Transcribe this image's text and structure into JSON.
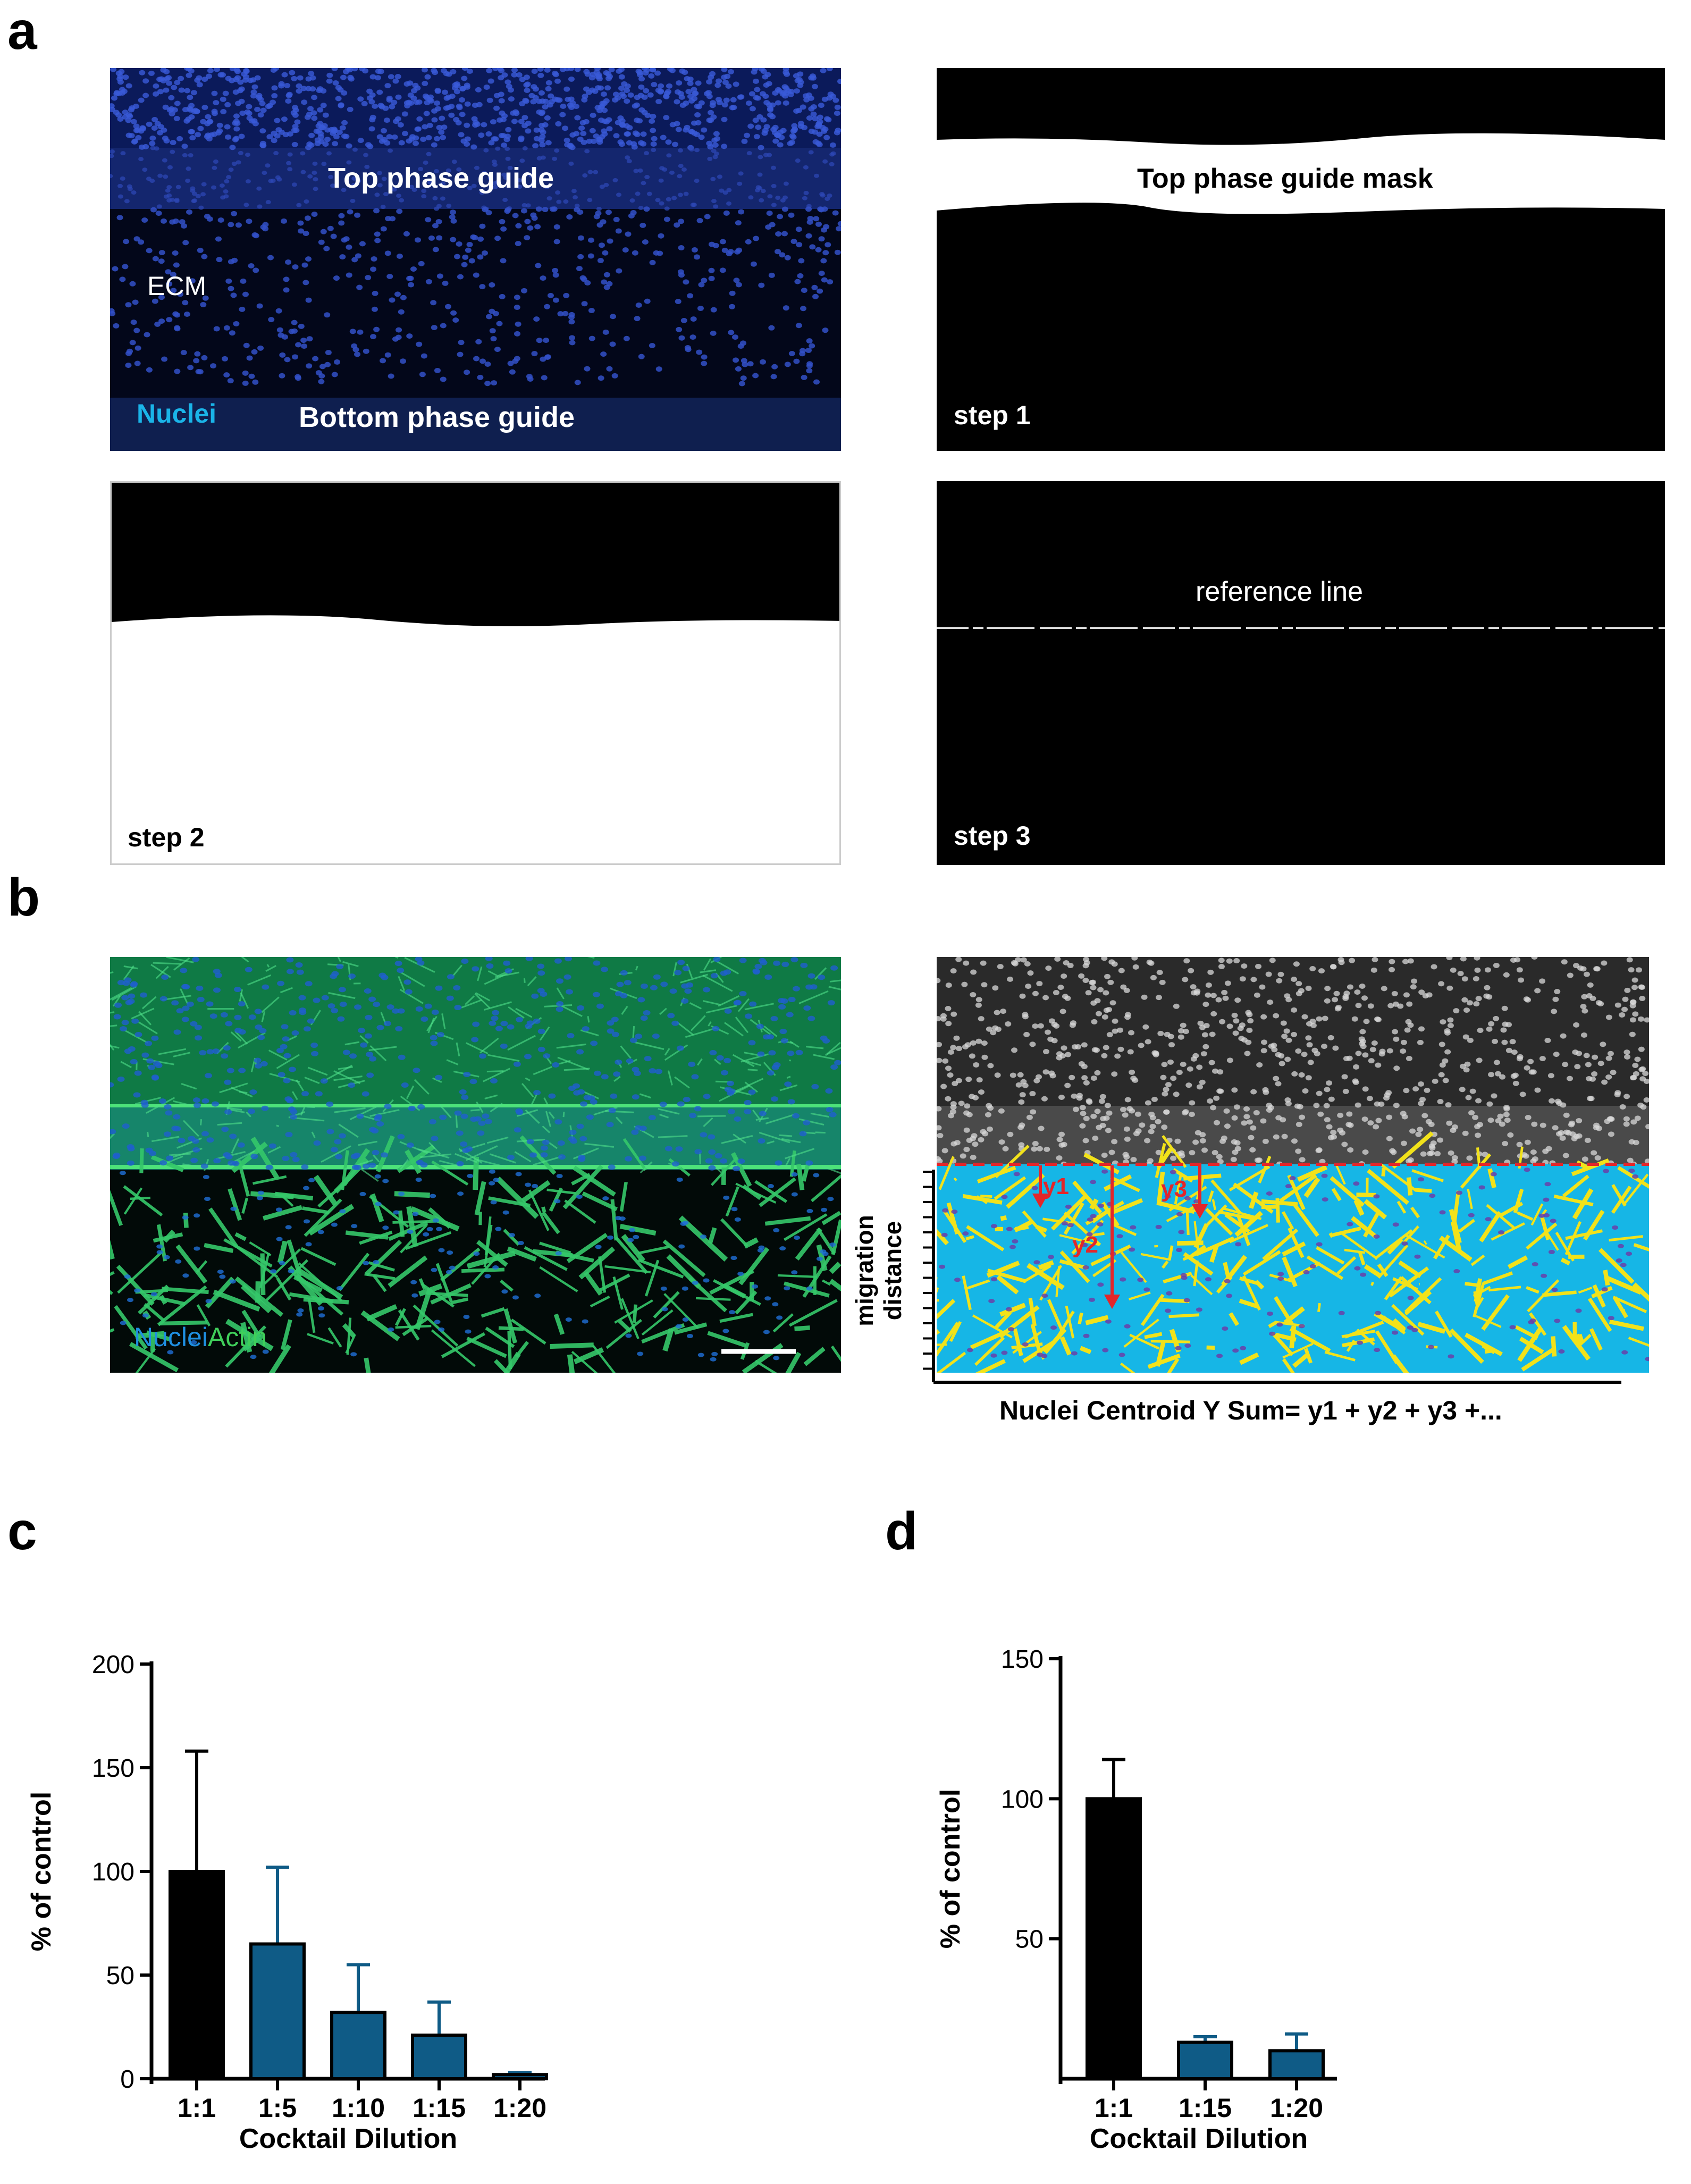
{
  "panel_labels": {
    "a": "a",
    "b": "b",
    "c": "c",
    "d": "d"
  },
  "panel_a": {
    "image1": {
      "top_label": "Top phase guide",
      "ecm_label": "ECM",
      "nuclei_label": "Nuclei",
      "bottom_label": "Bottom phase guide"
    },
    "image2": {
      "mask_label": "Top phase guide mask",
      "step_label": "step 1"
    },
    "image3": {
      "step_label": "step 2"
    },
    "image4": {
      "ref_label": "reference line",
      "step_label": "step 3"
    },
    "colors": {
      "nuclei_blue": "#1a2f8a",
      "label_cyan": "#1ab4e8",
      "mask_black": "#000000"
    }
  },
  "panel_b": {
    "left": {
      "label_nuclei": "Nuclei",
      "label_actin": "Actin",
      "colors": {
        "actin_green": "#2ecc5a",
        "nuclei_blue": "#1f5fd0"
      }
    },
    "right": {
      "y1": "y1",
      "y2": "y2",
      "y3": "y3",
      "axis_label_line1": "migration",
      "axis_label_line2": "distance",
      "formula": "Nuclei Centroid Y Sum= y1 + y2 + y3 +...",
      "colors": {
        "background_cyan": "#16b6e6",
        "cells_yellow": "#f2e21a",
        "arrow_red": "#e3262a"
      }
    }
  },
  "chart_data": [
    {
      "type": "bar",
      "panel": "c",
      "categories": [
        "1:1",
        "1:5",
        "1:10",
        "1:15",
        "1:20"
      ],
      "values": [
        100,
        65,
        32,
        21,
        2
      ],
      "errors": [
        58,
        37,
        23,
        16,
        1
      ],
      "colors": [
        "#000000",
        "#0f5b86",
        "#0f5b86",
        "#0f5b86",
        "#0f5b86"
      ],
      "xlabel": "Cocktail Dilution",
      "ylabel": "% of control",
      "ylim": [
        0,
        200
      ],
      "yticks": [
        "0",
        "50",
        "100",
        "150",
        "200"
      ],
      "yticks_values": [
        0,
        50,
        100,
        150,
        200
      ]
    },
    {
      "type": "bar",
      "panel": "d",
      "categories": [
        "1:1",
        "1:15",
        "1:20"
      ],
      "values": [
        100,
        13,
        10
      ],
      "errors": [
        14,
        2,
        6
      ],
      "colors": [
        "#000000",
        "#0f5b86",
        "#0f5b86"
      ],
      "xlabel": "Cocktail Dilution",
      "ylabel": "% of control",
      "ylim": [
        0,
        150
      ],
      "yticks": [
        "50",
        "100",
        "150"
      ],
      "yticks_values": [
        50,
        100,
        150
      ]
    }
  ]
}
